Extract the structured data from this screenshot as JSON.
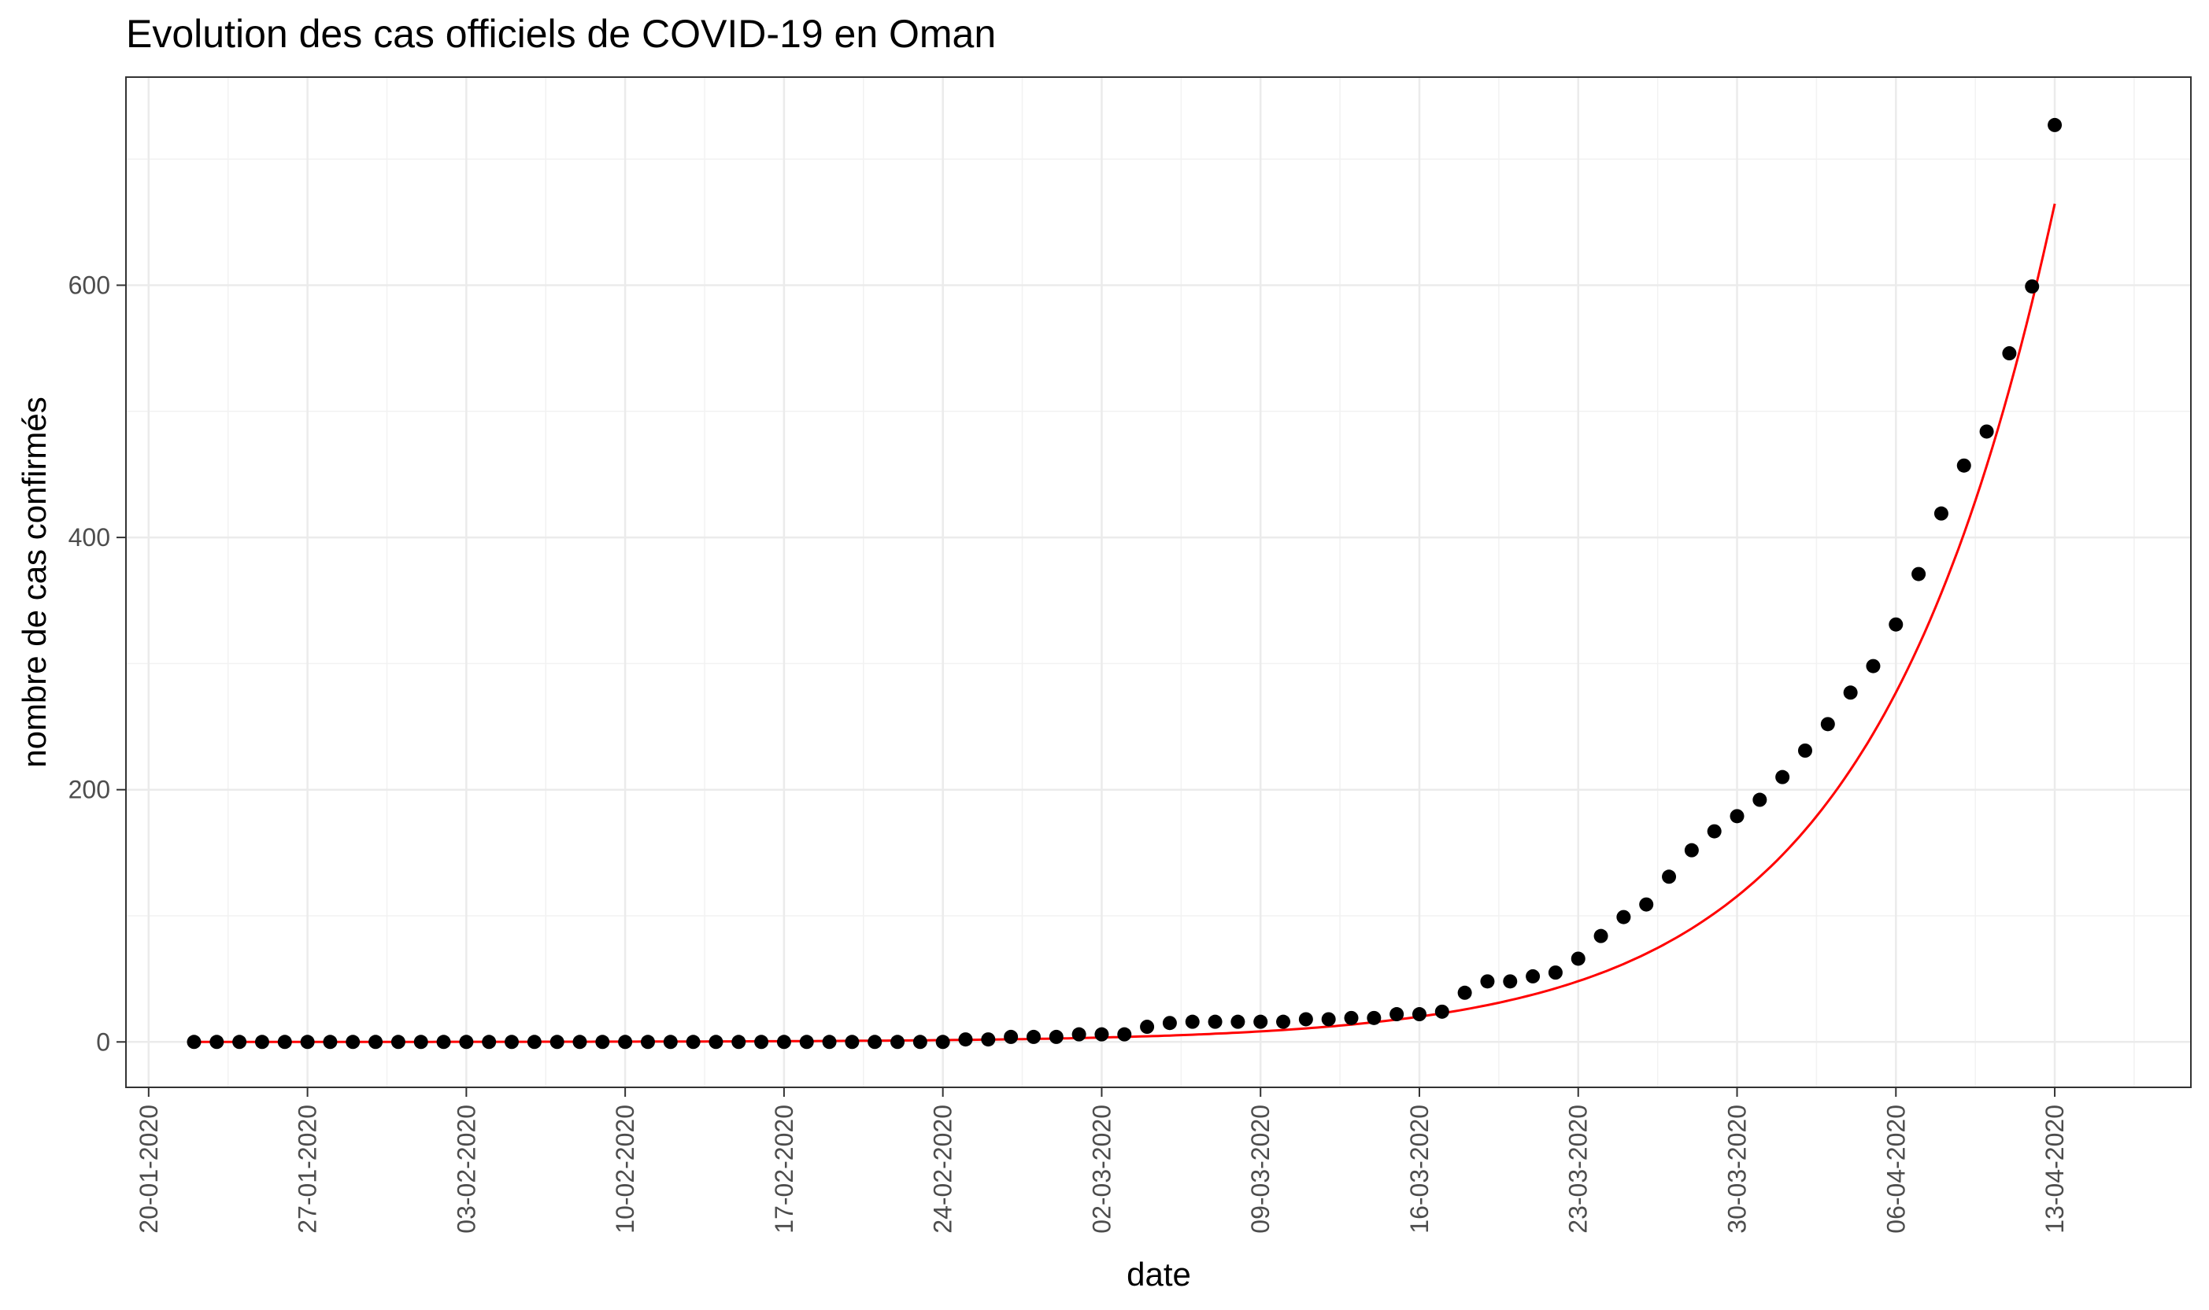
{
  "chart_data": {
    "type": "scatter",
    "title": "Evolution des cas officiels de COVID-19 en Oman",
    "xlabel": "date",
    "ylabel": "nombre de cas confirmés",
    "x_start_date": "2020-01-22",
    "xlim": [
      "2020-01-19",
      "2020-04-19"
    ],
    "ylim": [
      -36,
      765
    ],
    "x_ticks": [
      "20-01-2020",
      "27-01-2020",
      "03-02-2020",
      "10-02-2020",
      "17-02-2020",
      "24-02-2020",
      "02-03-2020",
      "09-03-2020",
      "16-03-2020",
      "23-03-2020",
      "30-03-2020",
      "06-04-2020",
      "13-04-2020"
    ],
    "y_ticks": [
      0,
      200,
      400,
      600
    ],
    "grid": true,
    "legend": "none",
    "series": [
      {
        "kind": "points",
        "color": "#000000",
        "values": [
          0,
          0,
          0,
          0,
          0,
          0,
          0,
          0,
          0,
          0,
          0,
          0,
          0,
          0,
          0,
          0,
          0,
          0,
          0,
          0,
          0,
          0,
          0,
          0,
          0,
          0,
          0,
          0,
          0,
          0,
          0,
          0,
          0,
          0,
          2,
          2,
          4,
          4,
          4,
          6,
          6,
          6,
          12,
          15,
          16,
          16,
          16,
          16,
          16,
          18,
          18,
          19,
          19,
          22,
          22,
          24,
          39,
          48,
          48,
          52,
          55,
          66,
          84,
          99,
          109,
          131,
          152,
          167,
          179,
          192,
          210,
          231,
          252,
          277,
          298,
          331,
          371,
          419,
          457,
          484,
          546,
          599,
          727
        ]
      },
      {
        "kind": "fitted-curve",
        "color": "#ff0000",
        "model": "exponential",
        "coefficient": 0.0235,
        "rate": 0.125
      }
    ]
  }
}
